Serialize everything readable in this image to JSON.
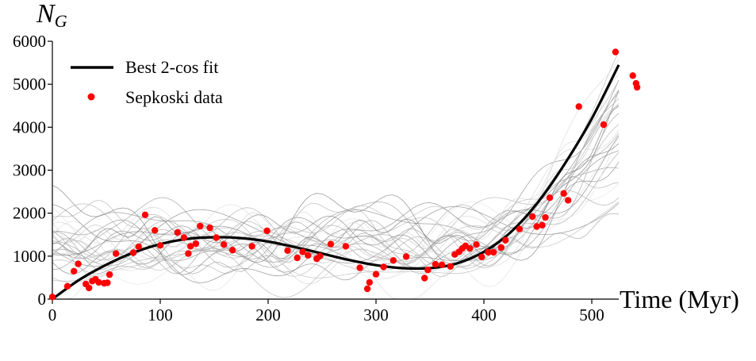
{
  "chart_data": {
    "type": "line",
    "xlabel": "Time (Myr)",
    "ylabel": "N",
    "ylabel_sub": "G",
    "xlim": [
      0,
      525
    ],
    "ylim": [
      0,
      6000
    ],
    "xticks": [
      0,
      100,
      200,
      300,
      400,
      500
    ],
    "yticks": [
      0,
      1000,
      2000,
      3000,
      4000,
      5000,
      6000
    ],
    "grid": false,
    "legend_position": "top-left",
    "series": [
      {
        "name": "Best 2-cos fit",
        "kind": "line",
        "color": "#000000",
        "x": [
          0,
          25,
          50,
          75,
          100,
          125,
          150,
          175,
          200,
          225,
          250,
          275,
          300,
          325,
          350,
          375,
          400,
          425,
          450,
          475,
          500,
          525
        ],
        "y": [
          0,
          450,
          800,
          1080,
          1280,
          1400,
          1440,
          1420,
          1340,
          1210,
          1060,
          910,
          790,
          720,
          720,
          830,
          1100,
          1560,
          2250,
          3150,
          4200,
          5450
        ]
      },
      {
        "name": "Sepkoski data",
        "kind": "scatter",
        "color": "#ff0000",
        "x": [
          0,
          14,
          20,
          24,
          31,
          34,
          37,
          40,
          43,
          48,
          51,
          53,
          59,
          75,
          80,
          86,
          95,
          100,
          116,
          122,
          126,
          128,
          133,
          137,
          146,
          152,
          159,
          167,
          185,
          199,
          218,
          227,
          232,
          237,
          245,
          248,
          258,
          272,
          285,
          292,
          294,
          300,
          307,
          316,
          328,
          345,
          348,
          355,
          361,
          369,
          373,
          377,
          380,
          383,
          387,
          393,
          398,
          404,
          409,
          416,
          420,
          433,
          445,
          449,
          454,
          457,
          461,
          474,
          478,
          488,
          511,
          522,
          538,
          541,
          542
        ],
        "y": [
          50,
          300,
          650,
          820,
          350,
          260,
          420,
          460,
          390,
          370,
          380,
          570,
          1060,
          1080,
          1220,
          1960,
          1600,
          1250,
          1550,
          1430,
          1060,
          1230,
          1290,
          1700,
          1660,
          1430,
          1270,
          1140,
          1230,
          1590,
          1130,
          960,
          1100,
          1020,
          940,
          1000,
          1280,
          1230,
          730,
          240,
          390,
          580,
          750,
          900,
          990,
          490,
          680,
          810,
          800,
          760,
          1040,
          1100,
          1180,
          1240,
          1180,
          1270,
          980,
          1090,
          1090,
          1200,
          1370,
          1630,
          1920,
          1690,
          1720,
          1900,
          2360,
          2460,
          2300,
          4480,
          4060,
          5750,
          5200,
          5020,
          4930
        ]
      }
    ]
  }
}
